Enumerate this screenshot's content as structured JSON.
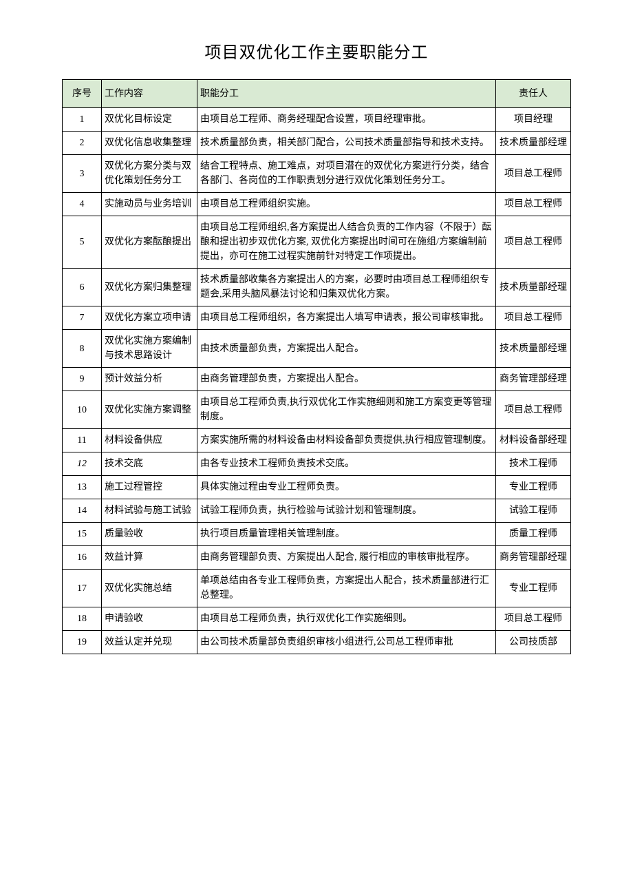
{
  "title": "项目双优化工作主要职能分工",
  "table": {
    "columns": [
      "序号",
      "工作内容",
      "职能分工",
      "责任人"
    ],
    "header_bg": "#d9ead3",
    "border_color": "#000000",
    "rows": [
      {
        "num": "1",
        "work": "双优化目标设定",
        "duty": "由项目总工程师、商务经理配合设置，项目经理审批。",
        "person": "项目经理"
      },
      {
        "num": "2",
        "work": "双优化信息收集整理",
        "duty": "技术质量部负责，相关部门配合，公司技术质量部指导和技术支持。",
        "person": "技术质量部经理"
      },
      {
        "num": "3",
        "work": "双优化方案分类与双优化策划任务分工",
        "duty": "结合工程特点、施工难点，对项目潜在的双优化方案进行分类，结合各部门、各岗位的工作职责划分进行双优化策划任务分工。",
        "person": "项目总工程师"
      },
      {
        "num": "4",
        "work": "实施动员与业务培训",
        "duty": "由项目总工程师组织实施。",
        "person": "项目总工程师"
      },
      {
        "num": "5",
        "work": "双优化方案酝酿提出",
        "duty": "由项目总工程师组织,各方案提出人结合负责的工作内容（不限于）酝酿和提出初步双优化方案, 双优化方案提出时间可在施组/方案编制前提出，亦可在施工过程实施前针对特定工作项提出。",
        "person": "项目总工程师"
      },
      {
        "num": "6",
        "work": "双优化方案归集整理",
        "duty": "技术质量部收集各方案提出人的方案，必要时由项目总工程师组织专题会,采用头脑风暴法讨论和归集双优化方案。",
        "person": "技术质量部经理"
      },
      {
        "num": "7",
        "work": "双优化方案立项申请",
        "duty": "由项目总工程师组织，各方案提出人填写申请表，报公司审核审批。",
        "person": "项目总工程师"
      },
      {
        "num": "8",
        "work": "双优化实施方案编制与技术思路设计",
        "duty": "由技术质量部负责，方案提出人配合。",
        "person": "技术质量部经理"
      },
      {
        "num": "9",
        "work": "预计效益分析",
        "duty": "由商务管理部负责，方案提出人配合。",
        "person": "商务管理部经理"
      },
      {
        "num": "10",
        "work": "双优化实施方案调整",
        "duty": "由项目总工程师负责,执行双优化工作实施细则和施工方案变更等管理制度。",
        "person": "项目总工程师"
      },
      {
        "num": "11",
        "work": "材料设备供应",
        "duty": "方案实施所需的材料设备由材料设备部负责提供,执行相应管理制度。",
        "person": "材料设备部经理"
      },
      {
        "num": "12",
        "work": "技术交底",
        "duty": "由各专业技术工程师负责技术交底。",
        "person": "技术工程师",
        "italic": true
      },
      {
        "num": "13",
        "work": "施工过程管控",
        "duty": "具体实施过程由专业工程师负责。",
        "person": "专业工程师"
      },
      {
        "num": "14",
        "work": "材料试验与施工试验",
        "duty": "试验工程师负责，执行检验与试验计划和管理制度。",
        "person": "试验工程师"
      },
      {
        "num": "15",
        "work": "质量验收",
        "duty": "执行项目质量管理相关管理制度。",
        "person": "质量工程师"
      },
      {
        "num": "16",
        "work": "效益计算",
        "duty": "由商务管理部负责、方案提出人配合, 履行相应的审核审批程序。",
        "person": "商务管理部经理"
      },
      {
        "num": "17",
        "work": "双优化实施总结",
        "duty": "单项总结由各专业工程师负责，方案提出人配合，技术质量部进行汇总整理。",
        "person": "专业工程师"
      },
      {
        "num": "18",
        "work": "申请验收",
        "duty": "由项目总工程师负责，执行双优化工作实施细则。",
        "person": "项目总工程师"
      },
      {
        "num": "19",
        "work": "效益认定并兑现",
        "duty": "由公司技术质量部负责组织审核小组进行,公司总工程师审批",
        "person": "公司技质部"
      }
    ]
  }
}
